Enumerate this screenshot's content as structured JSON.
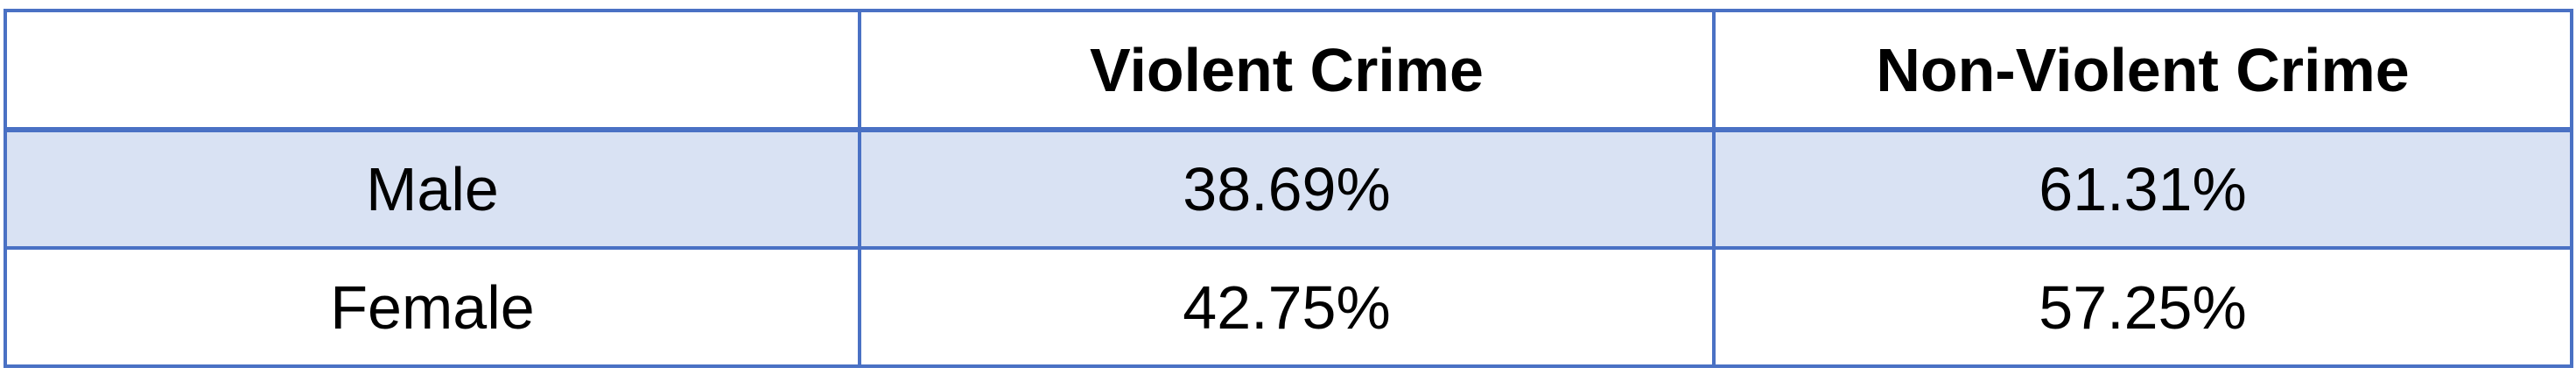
{
  "chart_data": {
    "type": "table",
    "columns": [
      "",
      "Violent Crime",
      "Non-Violent Crime"
    ],
    "rows": [
      {
        "label": "Male",
        "values": [
          "38.69%",
          "61.31%"
        ]
      },
      {
        "label": "Female",
        "values": [
          "42.75%",
          "57.25%"
        ]
      }
    ]
  },
  "colors": {
    "border": "#4a71c4",
    "shaded_row": "#d9e2f3",
    "text": "#000000"
  }
}
